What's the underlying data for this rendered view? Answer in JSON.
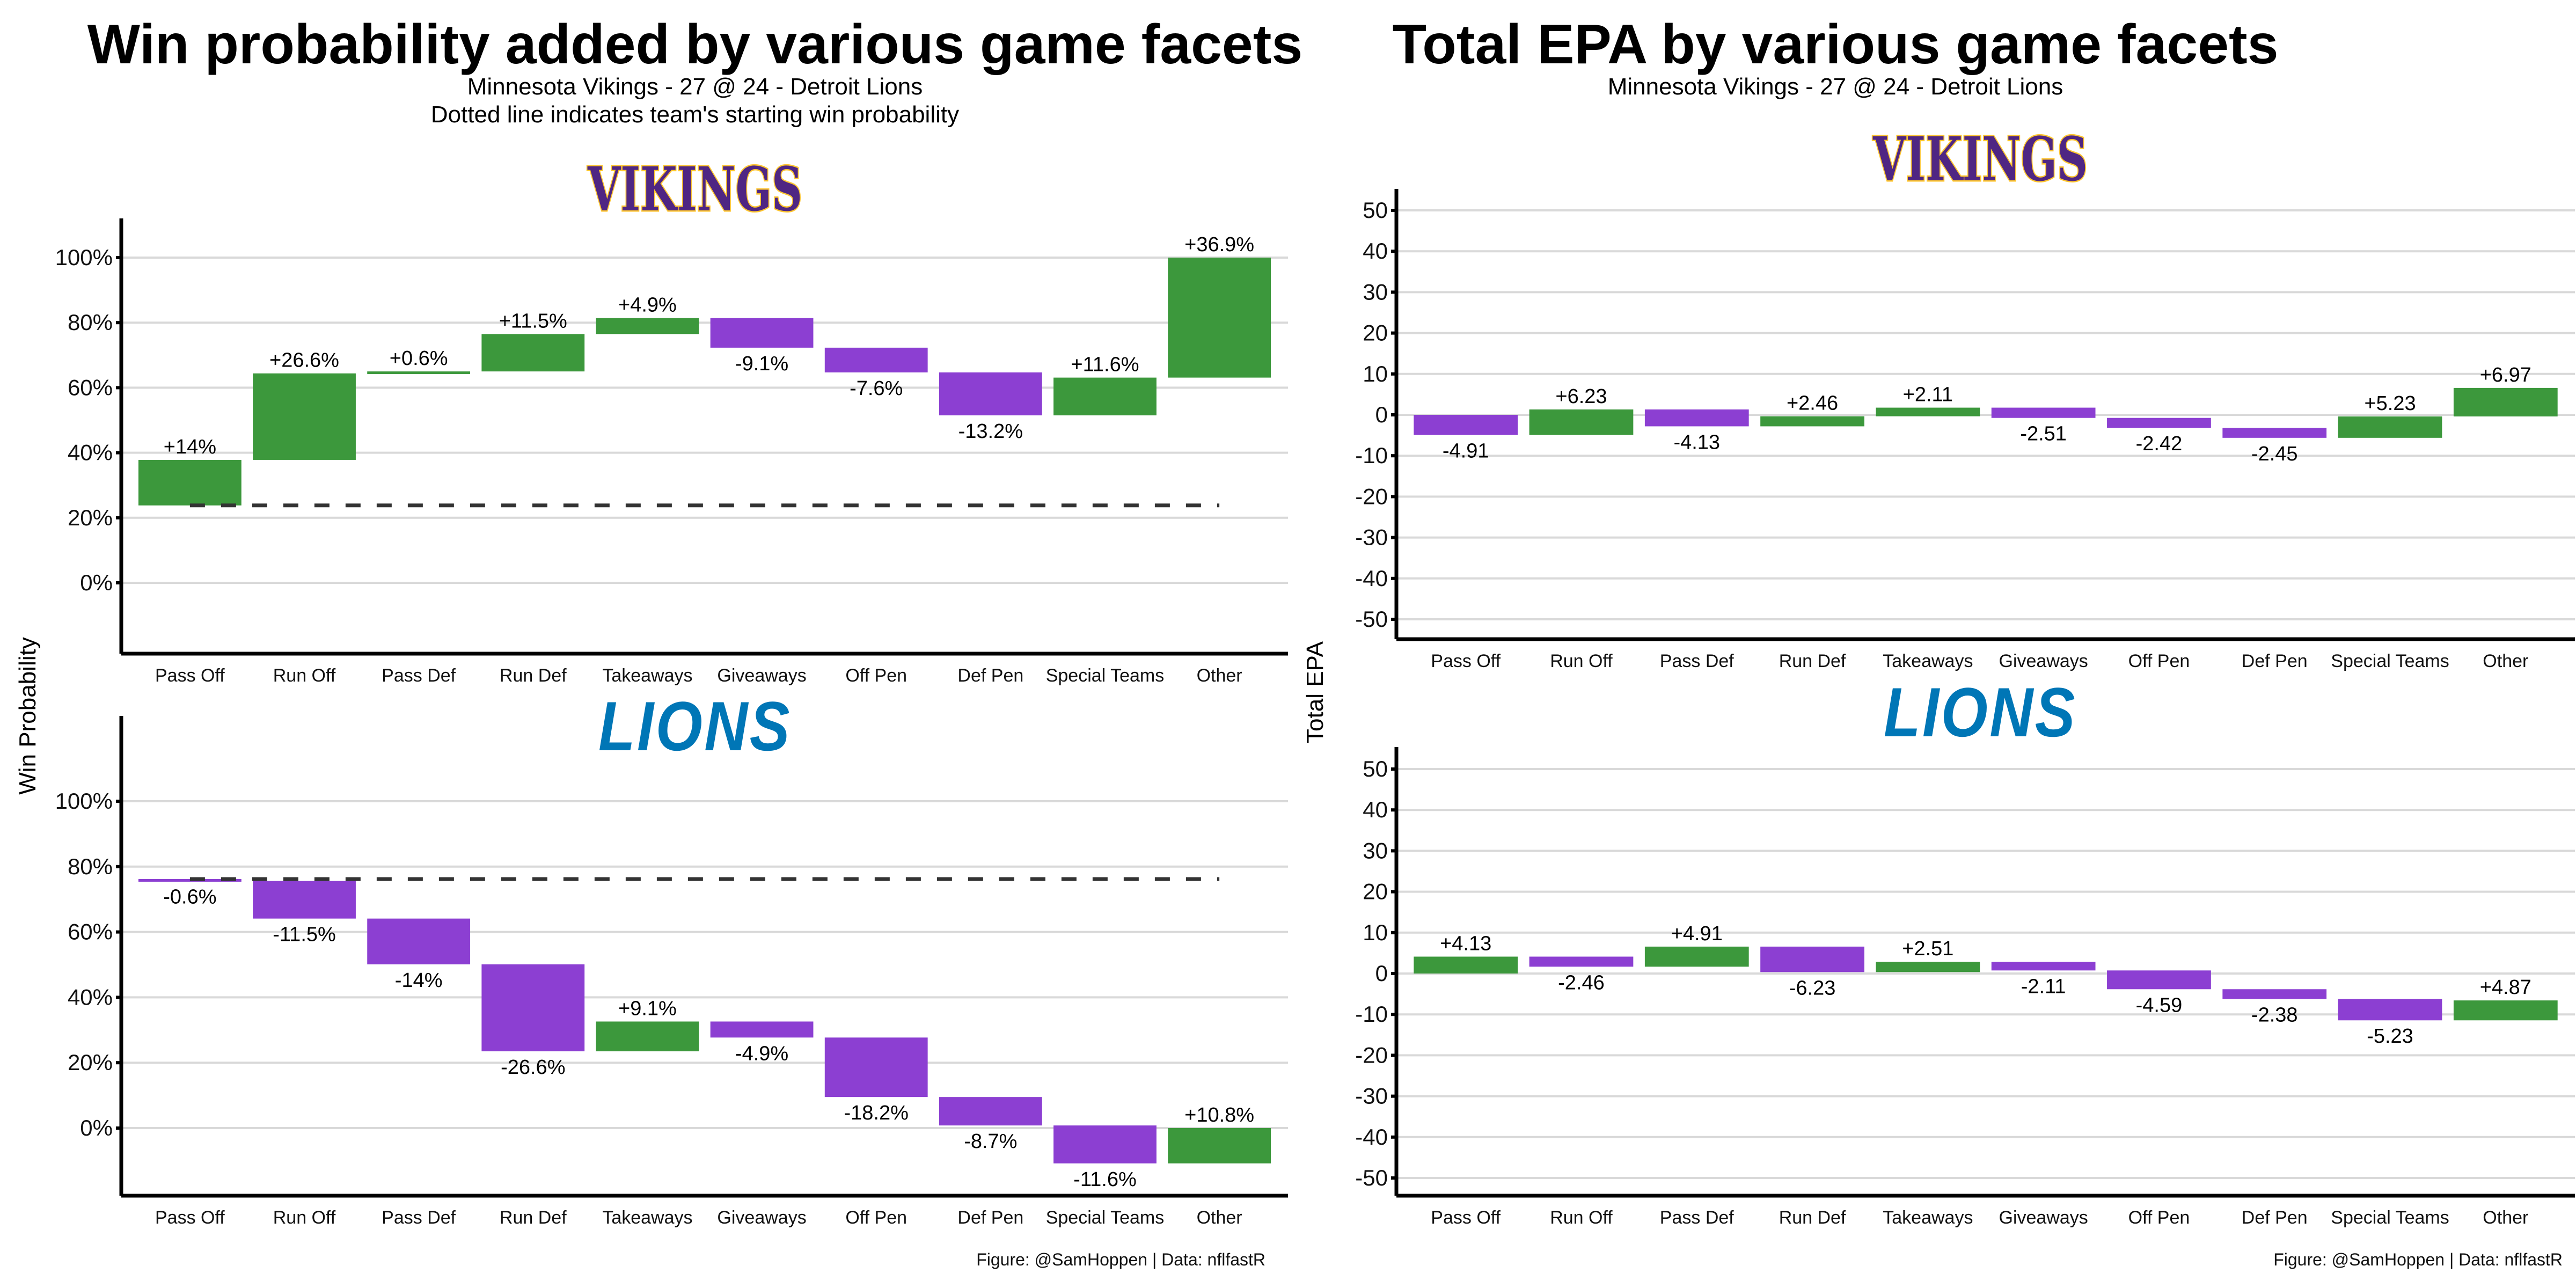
{
  "left": {
    "title": "Win probability added by various game facets",
    "subtitle1": "Minnesota Vikings - 27 @ 24 - Detroit Lions",
    "subtitle2": "Dotted line indicates team's starting win probability",
    "ylabel": "Win Probability",
    "footer": "Figure: @SamHoppen | Data: nflfastR"
  },
  "right": {
    "title": "Total EPA by various game facets",
    "subtitle1": "Minnesota Vikings - 27 @ 24 - Detroit Lions",
    "ylabel": "Total EPA",
    "footer": "Figure: @SamHoppen | Data: nflfastR"
  },
  "logos": {
    "vikings": "VIKINGS",
    "lions": "LIONS"
  },
  "colors": {
    "positive": "#389638",
    "negative": "#8a3bd1",
    "grid": "#d9d9d9",
    "vikings_purple": "#4f2683",
    "vikings_gold": "#ffc62f",
    "lions_blue": "#0076b6"
  },
  "chart_data": [
    {
      "id": "wp-vikings",
      "type": "bar",
      "subtype": "waterfall",
      "team": "vikings",
      "categories": [
        "Pass Off",
        "Run Off",
        "Pass Def",
        "Run Def",
        "Takeaways",
        "Giveaways",
        "Off Pen",
        "Def Pen",
        "Special Teams",
        "Other"
      ],
      "start": 23.8,
      "values": [
        14,
        26.6,
        0.6,
        11.5,
        4.9,
        -9.1,
        -7.6,
        -13.2,
        11.6,
        36.9
      ],
      "labels": [
        "+14%",
        "+26.6%",
        "+0.6%",
        "+11.5%",
        "+4.9%",
        "-9.1%",
        "-7.6%",
        "-13.2%",
        "+11.6%",
        "+36.9%"
      ],
      "yticks": [
        0,
        20,
        40,
        60,
        80,
        100
      ],
      "ytick_labels": [
        "0%",
        "20%",
        "40%",
        "60%",
        "80%",
        "100%"
      ],
      "ylim": [
        -21.7,
        112
      ],
      "grid": true,
      "reference_line": "dashed at starting win probability"
    },
    {
      "id": "wp-lions",
      "type": "bar",
      "subtype": "waterfall",
      "team": "lions",
      "categories": [
        "Pass Off",
        "Run Off",
        "Pass Def",
        "Run Def",
        "Takeaways",
        "Giveaways",
        "Off Pen",
        "Def Pen",
        "Special Teams",
        "Other"
      ],
      "start": 76.2,
      "values": [
        -0.6,
        -11.5,
        -14,
        -26.6,
        9.1,
        -4.9,
        -18.2,
        -8.7,
        -11.6,
        10.8
      ],
      "labels": [
        "-0.6%",
        "-11.5%",
        "-14%",
        "-26.6%",
        "+9.1%",
        "-4.9%",
        "-18.2%",
        "-8.7%",
        "-11.6%",
        "+10.8%"
      ],
      "yticks": [
        0,
        20,
        40,
        60,
        80,
        100
      ],
      "ytick_labels": [
        "0%",
        "20%",
        "40%",
        "60%",
        "80%",
        "100%"
      ],
      "ylim": [
        -20.7,
        126
      ],
      "grid": true,
      "reference_line": "dashed at starting win probability"
    },
    {
      "id": "epa-vikings",
      "type": "bar",
      "subtype": "waterfall",
      "team": "vikings",
      "categories": [
        "Pass Off",
        "Run Off",
        "Pass Def",
        "Run Def",
        "Takeaways",
        "Giveaways",
        "Off Pen",
        "Def Pen",
        "Special Teams",
        "Other"
      ],
      "start": 0,
      "values": [
        -4.91,
        6.23,
        -4.13,
        2.46,
        2.11,
        -2.51,
        -2.42,
        -2.45,
        5.23,
        6.97
      ],
      "labels": [
        "-4.91",
        "+6.23",
        "-4.13",
        "+2.46",
        "+2.11",
        "-2.51",
        "-2.42",
        "-2.45",
        "+5.23",
        "+6.97"
      ],
      "yticks": [
        -50,
        -40,
        -30,
        -20,
        -10,
        0,
        10,
        20,
        30,
        40,
        50
      ],
      "ytick_labels": [
        "-50",
        "-40",
        "-30",
        "-20",
        "-10",
        "0",
        "10",
        "20",
        "30",
        "40",
        "50"
      ],
      "ylim": [
        -55,
        55
      ],
      "grid": true
    },
    {
      "id": "epa-lions",
      "type": "bar",
      "subtype": "waterfall",
      "team": "lions",
      "categories": [
        "Pass Off",
        "Run Off",
        "Pass Def",
        "Run Def",
        "Takeaways",
        "Giveaways",
        "Off Pen",
        "Def Pen",
        "Special Teams",
        "Other"
      ],
      "start": 0,
      "values": [
        4.13,
        -2.46,
        4.91,
        -6.23,
        2.51,
        -2.11,
        -4.59,
        -2.38,
        -5.23,
        4.87
      ],
      "labels": [
        "+4.13",
        "-2.46",
        "+4.91",
        "-6.23",
        "+2.51",
        "-2.11",
        "-4.59",
        "-2.38",
        "-5.23",
        "+4.87"
      ],
      "yticks": [
        -50,
        -40,
        -30,
        -20,
        -10,
        0,
        10,
        20,
        30,
        40,
        50
      ],
      "ytick_labels": [
        "-50",
        "-40",
        "-30",
        "-20",
        "-10",
        "0",
        "10",
        "20",
        "30",
        "40",
        "50"
      ],
      "ylim": [
        -55,
        55
      ],
      "grid": true
    }
  ]
}
